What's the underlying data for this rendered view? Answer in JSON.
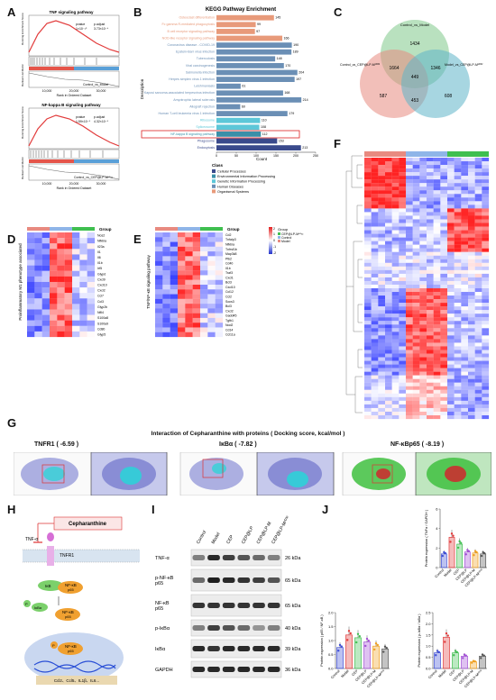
{
  "panels": {
    "A": {
      "label": "A",
      "plot1": {
        "title": "TNF signaling pathway",
        "pvalue_header": "pvalue",
        "padjust_header": "p.adjust",
        "pvalue": "1×10⁻¹⁰",
        "padjust": "3.73×10⁻⁹",
        "group": "Control_vs_Model",
        "xlabel": "Rank in Ordered Dataset",
        "ylabel_top": "Running Enrichment Score",
        "ylabel_bottom": "Ranked List Metric"
      },
      "plot2": {
        "title": "NF-kappa B signaling pathway",
        "pvalue_header": "pvalue",
        "padjust_header": "p.adjust",
        "pvalue": "1.59×10⁻⁸",
        "padjust": "4.32×10⁻⁸",
        "group": "Control_vs_CEP@LP-Mᶜᴰ³²",
        "xlabel": "Rank in Ordered Dataset",
        "ylabel_top": "Running Enrichment Score",
        "ylabel_bottom": "Ranked List Metric"
      },
      "xticks": [
        "10,000",
        "20,000",
        "30,000"
      ]
    },
    "B": {
      "label": "B",
      "title": "KEGG Pathway Enrichment",
      "ylabel": "Description",
      "xlabel": "Count",
      "legend_title": "Class",
      "legend": [
        {
          "name": "Cellular Processes",
          "color": "#3a4a8c"
        },
        {
          "name": "Environmental Information Processing",
          "color": "#3a8fa8"
        },
        {
          "name": "Genetic Information Processing",
          "color": "#5dc7d8"
        },
        {
          "name": "Human Diseases",
          "color": "#6b8fb5"
        },
        {
          "name": "Organismal Systems",
          "color": "#e89a7a"
        }
      ],
      "chart_data": {
        "type": "bar",
        "orientation": "horizontal",
        "xlim": [
          0,
          250
        ],
        "xticks": [
          "0",
          "50",
          "100",
          "150",
          "200",
          "250"
        ],
        "bars": [
          {
            "label": "Osteoclast differentiation",
            "value": 145,
            "color": "#e89a7a"
          },
          {
            "label": "Fc gamma R-mediated phagocytosis",
            "value": 99,
            "color": "#e89a7a"
          },
          {
            "label": "B cell receptor signaling pathway",
            "value": 97,
            "color": "#e89a7a"
          },
          {
            "label": "NOD-like receptor signaling pathway",
            "value": 166,
            "color": "#e89a7a"
          },
          {
            "label": "Coronavirus disease - COVID-19",
            "value": 190,
            "color": "#6b8fb5"
          },
          {
            "label": "Epstein-Barr virus infection",
            "value": 189,
            "color": "#6b8fb5"
          },
          {
            "label": "Tuberculosis",
            "value": 148,
            "color": "#6b8fb5"
          },
          {
            "label": "Viral carcinogenesis",
            "value": 170,
            "color": "#6b8fb5"
          },
          {
            "label": "Salmonella infection",
            "value": 204,
            "color": "#6b8fb5"
          },
          {
            "label": "Herpes simplex virus 1 infection",
            "value": 197,
            "color": "#6b8fb5"
          },
          {
            "label": "Leishmaniasis",
            "value": 61,
            "color": "#6b8fb5"
          },
          {
            "label": "Kaposi sarcoma-associated herpesvirus infection",
            "value": 168,
            "color": "#6b8fb5"
          },
          {
            "label": "Amyotrophic lateral sclerosis",
            "value": 214,
            "color": "#6b8fb5"
          },
          {
            "label": "Allograft rejection",
            "value": 60,
            "color": "#6b8fb5"
          },
          {
            "label": "Human T-cell leukemia virus 1 infection",
            "value": 179,
            "color": "#6b8fb5"
          },
          {
            "label": "Ribosome",
            "value": 110,
            "color": "#5dc7d8"
          },
          {
            "label": "Spliceosome",
            "value": 108,
            "color": "#5dc7d8"
          },
          {
            "label": "NF-kappa B signaling pathway",
            "value": 112,
            "color": "#3a8fa8"
          },
          {
            "label": "Phagosome",
            "value": 153,
            "color": "#3a4a8c"
          },
          {
            "label": "Endocytosis",
            "value": 213,
            "color": "#3a4a8c"
          }
        ],
        "highlighted": "NF-kappa B signaling pathway"
      }
    },
    "C": {
      "label": "C",
      "sets": [
        "Control_vs_Model",
        "Control_vs_CEP@LP-Mᶜᴰ³²",
        "Model_vs_CEP@LP-Mᶜᴰ³²"
      ],
      "counts": {
        "only_top": "1434",
        "only_left": "587",
        "only_right": "608",
        "top_left": "1664",
        "top_right": "1346",
        "left_right": "453",
        "all": "449"
      }
    },
    "D": {
      "label": "D",
      "ylabel": "Proinflammatory M1 phenotype associated",
      "legend_title": "Group",
      "genes": [
        "Nos2",
        "Nfkbia",
        "Il23a",
        "Il1",
        "Il6",
        "Il1b",
        "Irf5",
        "Glypd",
        "Cxcl9",
        "Cxcl10",
        "Cxcl2",
        "Ccl7",
        "Ccl3",
        "Glyp2b",
        "Nfil4",
        "S100a8",
        "S100a9",
        "Cd80",
        "Glyp5"
      ]
    },
    "E": {
      "label": "E",
      "ylabel": "TNF/NF-κB signaling pathway",
      "legend_title": "Group",
      "legend_items": [
        "CEP@LP-Mᶜᴰ³²",
        "Control",
        "Model"
      ],
      "scale": [
        "2",
        "1",
        "0",
        "-1",
        "-2"
      ],
      "genes": [
        "Cd2",
        "Tnfaip3",
        "Nfkbia",
        "Tnfrsf1b",
        "Map3k8",
        "Ptk2",
        "Cd40",
        "Il1b",
        "Traf3",
        "Cxcl1",
        "Bcl3",
        "Cxcl10",
        "Ccl12",
        "Ccl2",
        "Socs3",
        "Bcl3",
        "Cxcl2",
        "Gadd45",
        "Tgfb1",
        "Nod2",
        "Cd14",
        "Ccl11a"
      ]
    },
    "F": {
      "label": "F"
    },
    "G": {
      "label": "G",
      "title": "Interaction of Cepharanthine with proteins ( Docking score, kcal/mol )",
      "proteins": [
        {
          "name": "TNFR1",
          "score": "( -6.59 )"
        },
        {
          "name": "IκBα",
          "score": "( -7.82 )"
        },
        {
          "name": "NF-κBp65",
          "score": "( -8.19 )"
        }
      ]
    },
    "H": {
      "label": "H",
      "drug": "Cepharanthine",
      "tnf": "TNF-α",
      "receptor": "TNFR1",
      "ikb": "IκB",
      "nfkb": "NF-κB",
      "p65": "p65",
      "p": "P",
      "ikba": "IκBα",
      "genes": "Ccl2、Ccl5、IL1β、IL6..."
    },
    "I": {
      "label": "I",
      "lanes": [
        "Control",
        "Model",
        "CEP",
        "CEP@LP",
        "CEP@LP-M",
        "CEP@LP-Mᶜᴰ³²"
      ],
      "blots": [
        {
          "name": "TNF-α",
          "kda": "26 kDa"
        },
        {
          "name": "p-NF-κB p65",
          "kda": "65 kDa"
        },
        {
          "name": "NF-κB p65",
          "kda": "65 kDa"
        },
        {
          "name": "p-IκBα",
          "kda": "40 kDa"
        },
        {
          "name": "IκBα",
          "kda": "39 kDa"
        },
        {
          "name": "GAPDH",
          "kda": "36 kDa"
        }
      ]
    },
    "J": {
      "label": "J",
      "groups": [
        "Control",
        "Model",
        "CEP",
        "CEP@LP",
        "CEP@LP-M",
        "CEP@LP-Mᶜᴰ³²"
      ],
      "colors": [
        "#3f4fd6",
        "#e23b3b",
        "#3fbf4f",
        "#a34fd6",
        "#f0a020",
        "#555555"
      ],
      "chart_data": [
        {
          "type": "bar",
          "ylabel": "Protein expression ( TNFα / GAPDH )",
          "ylim": [
            0,
            6
          ],
          "yticks": [
            "0",
            "2",
            "4",
            "6"
          ],
          "values": [
            1.4,
            3.1,
            2.4,
            1.6,
            1.5,
            1.4
          ]
        },
        {
          "type": "bar",
          "ylabel": "Protein expression ( p65 / NF-κB )",
          "ylim": [
            0,
            2.0
          ],
          "yticks": [
            "0.0",
            "0.5",
            "1.0",
            "1.5",
            "2.0"
          ],
          "values": [
            0.75,
            1.2,
            1.1,
            0.95,
            0.8,
            0.7
          ]
        },
        {
          "type": "bar",
          "ylabel": "Protein expression ( p-IκBα / IκBα )",
          "ylim": [
            0,
            2.5
          ],
          "yticks": [
            "0.0",
            "0.5",
            "1.0",
            "1.5",
            "2.0",
            "2.5"
          ],
          "values": [
            0.7,
            1.4,
            0.7,
            0.55,
            0.3,
            0.55
          ]
        }
      ]
    }
  }
}
